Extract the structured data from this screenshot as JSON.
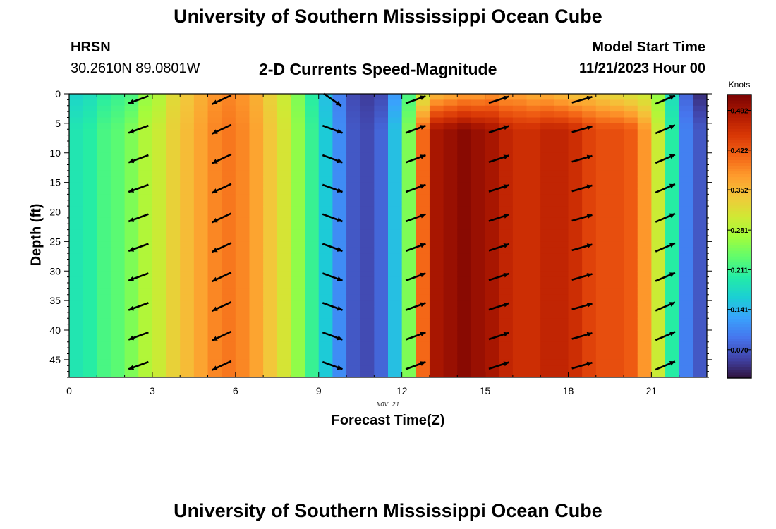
{
  "header": {
    "title": "University of Southern Mississippi Ocean Cube",
    "station": "HRSN",
    "coords": "30.2610N  89.0801W",
    "subtitle": "2-D Currents Speed-Magnitude",
    "start_label": "Model Start Time",
    "start_value": "11/21/2023 Hour 00"
  },
  "footer": {
    "title": "University of Southern Mississippi Ocean Cube"
  },
  "chart_data": {
    "type": "heatmap",
    "title": "2-D Currents Speed-Magnitude",
    "xlabel": "Forecast Time(Z)",
    "ylabel": "Depth (ft)",
    "x_date_label": "NOV 21",
    "xlim": [
      0,
      23
    ],
    "ylim": [
      48,
      0
    ],
    "y_inverted": true,
    "x_ticks": [
      0,
      3,
      6,
      9,
      12,
      15,
      18,
      21
    ],
    "y_ticks": [
      0,
      5,
      10,
      15,
      20,
      25,
      30,
      35,
      40,
      45
    ],
    "colorbar": {
      "label": "Knots",
      "ticks": [
        0.07,
        0.141,
        0.211,
        0.281,
        0.352,
        0.422,
        0.492
      ],
      "range": [
        0.02,
        0.52
      ],
      "colormap": [
        "#30123b",
        "#4145ab",
        "#4675ed",
        "#39a2fc",
        "#1bcfd4",
        "#24eca6",
        "#61fc6c",
        "#a4fc3b",
        "#d1e834",
        "#f3c63a",
        "#fe9b2d",
        "#f36315",
        "#d93806",
        "#b11901",
        "#7a0403"
      ]
    },
    "hours": [
      0,
      0.5,
      1,
      1.5,
      2,
      2.5,
      3,
      3.5,
      4,
      4.5,
      5,
      5.5,
      6,
      6.5,
      7,
      7.5,
      8,
      8.5,
      9,
      9.5,
      10,
      10.5,
      11,
      11.5,
      12,
      12.5,
      13,
      13.5,
      14,
      14.5,
      15,
      15.5,
      16,
      16.5,
      17,
      17.5,
      18,
      18.5,
      19,
      19.5,
      20,
      20.5,
      21,
      21.5,
      22,
      22.5
    ],
    "speed_by_hour": [
      0.19,
      0.2,
      0.22,
      0.23,
      0.25,
      0.28,
      0.3,
      0.33,
      0.35,
      0.37,
      0.39,
      0.4,
      0.39,
      0.37,
      0.34,
      0.31,
      0.26,
      0.21,
      0.16,
      0.11,
      0.07,
      0.06,
      0.08,
      0.15,
      0.25,
      0.41,
      0.49,
      0.5,
      0.51,
      0.5,
      0.49,
      0.47,
      0.46,
      0.46,
      0.47,
      0.47,
      0.46,
      0.44,
      0.43,
      0.43,
      0.42,
      0.38,
      0.3,
      0.2,
      0.1,
      0.07
    ],
    "surface_speed_by_hour": [
      0.17,
      0.18,
      0.2,
      0.21,
      0.22,
      0.26,
      0.28,
      0.32,
      0.34,
      0.36,
      0.38,
      0.39,
      0.38,
      0.36,
      0.33,
      0.3,
      0.25,
      0.2,
      0.15,
      0.1,
      0.06,
      0.05,
      0.06,
      0.12,
      0.22,
      0.3,
      0.35,
      0.36,
      0.37,
      0.37,
      0.38,
      0.37,
      0.37,
      0.36,
      0.36,
      0.35,
      0.34,
      0.34,
      0.33,
      0.32,
      0.31,
      0.3,
      0.26,
      0.18,
      0.08,
      0.04
    ],
    "vectors": [
      {
        "hour": 2.5,
        "direction_deg": 250
      },
      {
        "hour": 5.5,
        "direction_deg": 245
      },
      {
        "hour": 9.5,
        "direction_deg": 110,
        "surface_direction_deg": 125
      },
      {
        "hour": 12.5,
        "direction_deg": 70
      },
      {
        "hour": 15.5,
        "direction_deg": 72
      },
      {
        "hour": 18.5,
        "direction_deg": 74
      },
      {
        "hour": 21.5,
        "direction_deg": 67
      }
    ],
    "vector_depths": [
      1,
      6,
      11,
      16,
      21,
      26,
      31,
      36,
      41,
      46
    ]
  }
}
